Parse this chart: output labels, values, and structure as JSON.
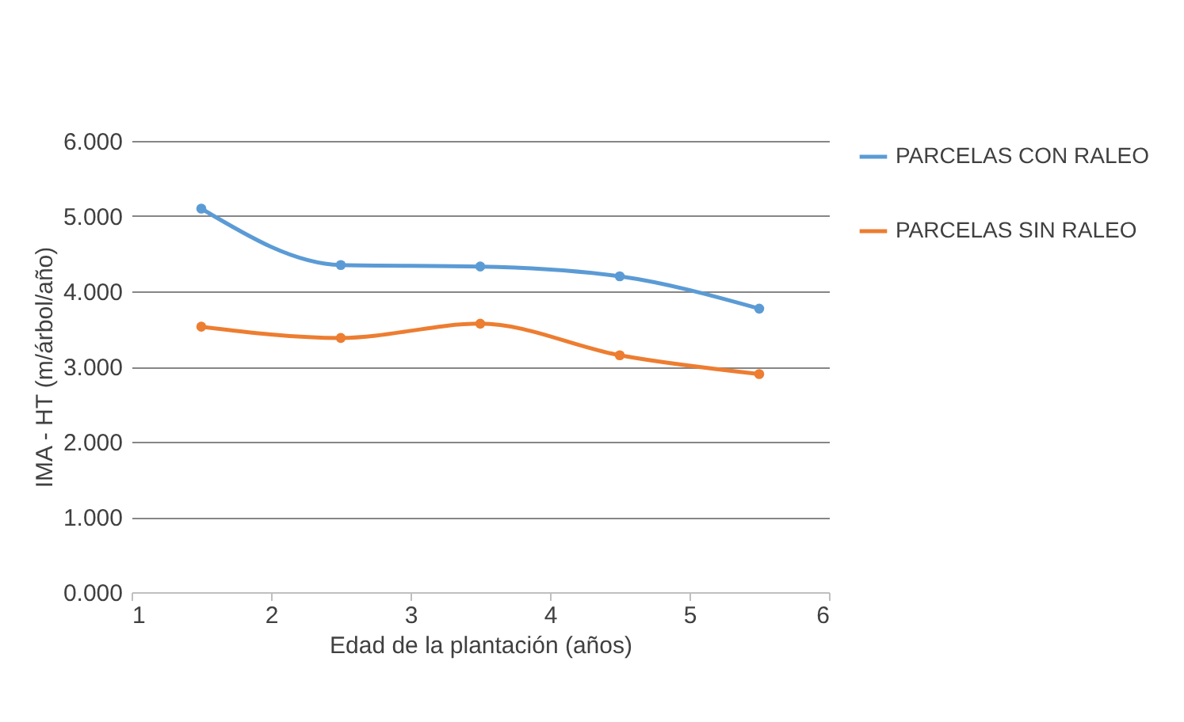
{
  "chart_data": {
    "type": "line",
    "xlabel": "Edad de la plantación (años)",
    "ylabel": "IMA - HT (m/árbol/año)",
    "x": [
      1.5,
      2.5,
      3.5,
      4.5,
      5.5
    ],
    "series": [
      {
        "name": "PARCELAS CON RALEO",
        "color": "#5b9bd5",
        "values": [
          5.1,
          4.35,
          4.33,
          4.2,
          3.77
        ]
      },
      {
        "name": "PARCELAS SIN RALEO",
        "color": "#ed7d31",
        "values": [
          3.53,
          3.38,
          3.57,
          3.15,
          2.9
        ]
      }
    ],
    "xlim": [
      1,
      6
    ],
    "xticks": [
      1,
      2,
      3,
      4,
      5,
      6
    ],
    "ylim": [
      0,
      6
    ],
    "yticks": [
      {
        "value": 0,
        "label": "0.000"
      },
      {
        "value": 1,
        "label": "1.000"
      },
      {
        "value": 2,
        "label": "2.000"
      },
      {
        "value": 3,
        "label": "3.000"
      },
      {
        "value": 4,
        "label": "4.000"
      },
      {
        "value": 5,
        "label": "5.000"
      },
      {
        "value": 6,
        "label": "6.000"
      }
    ],
    "grid": "y",
    "legend": "right",
    "marker": "circle",
    "line_style": "solid"
  }
}
